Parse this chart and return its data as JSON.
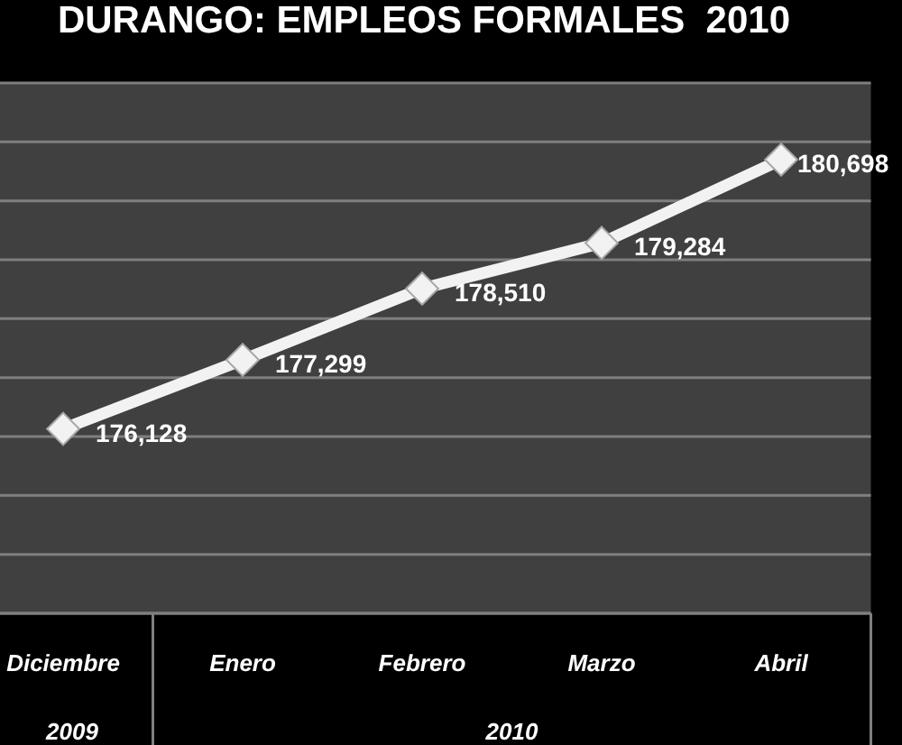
{
  "chart_data": {
    "type": "line",
    "title": "DURANGO: EMPLEOS FORMALES  2010",
    "categories": [
      "Diciembre",
      "Enero",
      "Febrero",
      "Marzo",
      "Abril"
    ],
    "values": [
      176128,
      177299,
      178510,
      179284,
      180698
    ],
    "color": "#f2f2f2",
    "marker": "diamond",
    "value_labels": [
      "176,128",
      "177,299",
      "178,510",
      "179,284",
      "180,698"
    ],
    "grid": "y",
    "tick_labels": "x",
    "annotations": [
      "2009",
      "2010"
    ]
  }
}
